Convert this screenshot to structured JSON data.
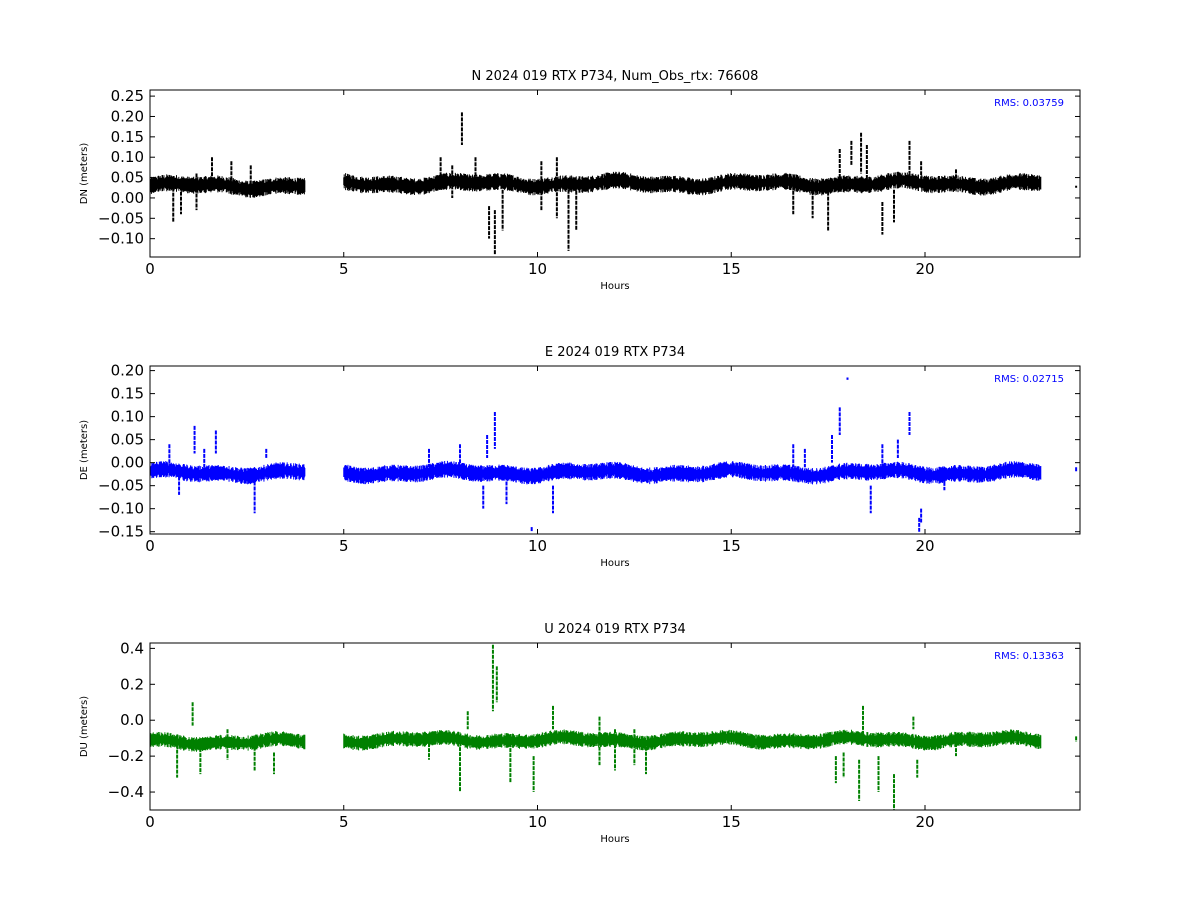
{
  "chart_data": [
    {
      "type": "scatter",
      "title": "N 2024 019 RTX  P734, Num_Obs_rtx: 76608",
      "xlabel": "Hours",
      "ylabel": "DN (meters)",
      "xlim": [
        0,
        24
      ],
      "ylim": [
        -0.145,
        0.265
      ],
      "x_ticks": [
        0,
        5,
        10,
        15,
        20
      ],
      "y_ticks": [
        -0.1,
        -0.05,
        0.0,
        0.05,
        0.1,
        0.15,
        0.2,
        0.25
      ],
      "y_tick_labels": [
        "−0.10",
        "−0.05",
        "0.00",
        "0.05",
        "0.10",
        "0.15",
        "0.20",
        "0.25"
      ],
      "color": "#000000",
      "annotation": "RMS:  0.03759",
      "annotation_color": "#0000ff",
      "segments": [
        {
          "start": 0.0,
          "end": 4.0,
          "base": 0.03
        },
        {
          "start": 5.0,
          "end": 23.0,
          "base": 0.035
        }
      ],
      "band_half_width": 0.015,
      "spikes": [
        {
          "x": 0.6,
          "min": -0.06,
          "max": 0.05
        },
        {
          "x": 0.8,
          "min": -0.04,
          "max": 0.04
        },
        {
          "x": 1.2,
          "min": -0.03,
          "max": 0.06
        },
        {
          "x": 1.6,
          "min": 0.03,
          "max": 0.1
        },
        {
          "x": 2.1,
          "min": 0.03,
          "max": 0.09
        },
        {
          "x": 2.6,
          "min": 0.03,
          "max": 0.08
        },
        {
          "x": 7.5,
          "min": 0.02,
          "max": 0.1
        },
        {
          "x": 7.8,
          "min": 0.0,
          "max": 0.08
        },
        {
          "x": 8.05,
          "min": 0.13,
          "max": 0.21
        },
        {
          "x": 8.4,
          "min": 0.04,
          "max": 0.1
        },
        {
          "x": 8.75,
          "min": -0.1,
          "max": -0.02
        },
        {
          "x": 8.9,
          "min": -0.14,
          "max": -0.03
        },
        {
          "x": 9.1,
          "min": -0.08,
          "max": 0.02
        },
        {
          "x": 10.1,
          "min": -0.03,
          "max": 0.09
        },
        {
          "x": 10.5,
          "min": -0.05,
          "max": 0.1
        },
        {
          "x": 10.8,
          "min": -0.13,
          "max": 0.02
        },
        {
          "x": 11.0,
          "min": -0.08,
          "max": 0.03
        },
        {
          "x": 16.6,
          "min": -0.04,
          "max": 0.03
        },
        {
          "x": 17.1,
          "min": -0.05,
          "max": 0.03
        },
        {
          "x": 17.5,
          "min": -0.08,
          "max": 0.04
        },
        {
          "x": 17.8,
          "min": 0.05,
          "max": 0.12
        },
        {
          "x": 18.1,
          "min": 0.08,
          "max": 0.14
        },
        {
          "x": 18.35,
          "min": 0.06,
          "max": 0.16
        },
        {
          "x": 18.5,
          "min": 0.04,
          "max": 0.13
        },
        {
          "x": 18.9,
          "min": -0.09,
          "max": -0.01
        },
        {
          "x": 19.2,
          "min": -0.06,
          "max": 0.02
        },
        {
          "x": 19.6,
          "min": 0.06,
          "max": 0.14
        },
        {
          "x": 19.9,
          "min": 0.04,
          "max": 0.09
        },
        {
          "x": 20.8,
          "min": 0.02,
          "max": 0.07
        },
        {
          "x": 23.9,
          "min": 0.025,
          "max": 0.03
        }
      ]
    },
    {
      "type": "scatter",
      "title": "E 2024 019 RTX  P734",
      "xlabel": "Hours",
      "ylabel": "DE (meters)",
      "xlim": [
        0,
        24
      ],
      "ylim": [
        -0.155,
        0.21
      ],
      "x_ticks": [
        0,
        5,
        10,
        15,
        20
      ],
      "y_ticks": [
        -0.15,
        -0.1,
        -0.05,
        0.0,
        0.05,
        0.1,
        0.15,
        0.2
      ],
      "y_tick_labels": [
        "−0.15",
        "−0.10",
        "−0.05",
        "0.00",
        "0.05",
        "0.10",
        "0.15",
        "0.20"
      ],
      "color": "#0000ff",
      "annotation": "RMS:  0.02715",
      "annotation_color": "#0000ff",
      "segments": [
        {
          "start": 0.0,
          "end": 4.0,
          "base": -0.022
        },
        {
          "start": 5.0,
          "end": 23.0,
          "base": -0.022
        }
      ],
      "band_half_width": 0.013,
      "spikes": [
        {
          "x": 0.5,
          "min": -0.02,
          "max": 0.04
        },
        {
          "x": 0.75,
          "min": -0.07,
          "max": -0.03
        },
        {
          "x": 1.15,
          "min": 0.02,
          "max": 0.08
        },
        {
          "x": 1.4,
          "min": -0.01,
          "max": 0.03
        },
        {
          "x": 1.7,
          "min": 0.02,
          "max": 0.07
        },
        {
          "x": 2.7,
          "min": -0.11,
          "max": -0.03
        },
        {
          "x": 3.0,
          "min": 0.01,
          "max": 0.03
        },
        {
          "x": 7.2,
          "min": -0.01,
          "max": 0.03
        },
        {
          "x": 8.0,
          "min": -0.02,
          "max": 0.04
        },
        {
          "x": 8.7,
          "min": 0.01,
          "max": 0.06
        },
        {
          "x": 8.9,
          "min": 0.03,
          "max": 0.11
        },
        {
          "x": 8.6,
          "min": -0.1,
          "max": -0.05
        },
        {
          "x": 9.2,
          "min": -0.09,
          "max": -0.03
        },
        {
          "x": 9.85,
          "min": -0.15,
          "max": -0.14
        },
        {
          "x": 10.4,
          "min": -0.11,
          "max": -0.05
        },
        {
          "x": 16.6,
          "min": -0.01,
          "max": 0.04
        },
        {
          "x": 16.9,
          "min": -0.01,
          "max": 0.03
        },
        {
          "x": 17.6,
          "min": 0.0,
          "max": 0.06
        },
        {
          "x": 17.8,
          "min": 0.06,
          "max": 0.12
        },
        {
          "x": 18.0,
          "min": 0.18,
          "max": 0.185
        },
        {
          "x": 18.6,
          "min": -0.11,
          "max": -0.05
        },
        {
          "x": 18.9,
          "min": -0.01,
          "max": 0.04
        },
        {
          "x": 19.3,
          "min": 0.01,
          "max": 0.05
        },
        {
          "x": 19.6,
          "min": 0.06,
          "max": 0.11
        },
        {
          "x": 19.85,
          "min": -0.15,
          "max": -0.12
        },
        {
          "x": 19.9,
          "min": -0.13,
          "max": -0.1
        },
        {
          "x": 20.5,
          "min": -0.06,
          "max": -0.02
        },
        {
          "x": 23.9,
          "min": -0.02,
          "max": -0.01
        }
      ]
    },
    {
      "type": "scatter",
      "title": "U 2024 019 RTX  P734",
      "xlabel": "Hours",
      "ylabel": "DU (meters)",
      "xlim": [
        0,
        24
      ],
      "ylim": [
        -0.5,
        0.43
      ],
      "x_ticks": [
        0,
        5,
        10,
        15,
        20
      ],
      "y_ticks": [
        -0.4,
        -0.2,
        0.0,
        0.2,
        0.4
      ],
      "y_tick_labels": [
        "−0.4",
        "−0.2",
        "0.0",
        "0.2",
        "0.4"
      ],
      "color": "#008000",
      "annotation": "RMS:  0.13363",
      "annotation_color": "#0000ff",
      "segments": [
        {
          "start": 0.0,
          "end": 4.0,
          "base": -0.12
        },
        {
          "start": 5.0,
          "end": 23.0,
          "base": -0.11
        }
      ],
      "band_half_width": 0.03,
      "spikes": [
        {
          "x": 0.7,
          "min": -0.32,
          "max": -0.08
        },
        {
          "x": 1.1,
          "min": -0.03,
          "max": 0.1
        },
        {
          "x": 1.3,
          "min": -0.3,
          "max": -0.1
        },
        {
          "x": 2.0,
          "min": -0.22,
          "max": -0.05
        },
        {
          "x": 2.7,
          "min": -0.28,
          "max": -0.12
        },
        {
          "x": 3.2,
          "min": -0.3,
          "max": -0.18
        },
        {
          "x": 7.2,
          "min": -0.22,
          "max": -0.1
        },
        {
          "x": 8.0,
          "min": -0.4,
          "max": -0.15
        },
        {
          "x": 8.2,
          "min": -0.05,
          "max": 0.05
        },
        {
          "x": 8.85,
          "min": 0.05,
          "max": 0.42
        },
        {
          "x": 8.95,
          "min": 0.1,
          "max": 0.3
        },
        {
          "x": 9.3,
          "min": -0.35,
          "max": -0.1
        },
        {
          "x": 9.9,
          "min": -0.4,
          "max": -0.2
        },
        {
          "x": 10.4,
          "min": -0.05,
          "max": 0.08
        },
        {
          "x": 11.6,
          "min": -0.25,
          "max": 0.02
        },
        {
          "x": 12.0,
          "min": -0.28,
          "max": -0.05
        },
        {
          "x": 12.5,
          "min": -0.25,
          "max": -0.05
        },
        {
          "x": 12.8,
          "min": -0.3,
          "max": -0.12
        },
        {
          "x": 17.7,
          "min": -0.35,
          "max": -0.2
        },
        {
          "x": 17.9,
          "min": -0.32,
          "max": -0.18
        },
        {
          "x": 18.3,
          "min": -0.45,
          "max": -0.22
        },
        {
          "x": 18.4,
          "min": -0.1,
          "max": 0.08
        },
        {
          "x": 18.8,
          "min": -0.4,
          "max": -0.2
        },
        {
          "x": 19.2,
          "min": -0.5,
          "max": -0.3
        },
        {
          "x": 19.7,
          "min": -0.05,
          "max": 0.02
        },
        {
          "x": 19.8,
          "min": -0.32,
          "max": -0.22
        },
        {
          "x": 20.8,
          "min": -0.2,
          "max": -0.1
        },
        {
          "x": 23.9,
          "min": -0.12,
          "max": -0.09
        }
      ]
    }
  ]
}
